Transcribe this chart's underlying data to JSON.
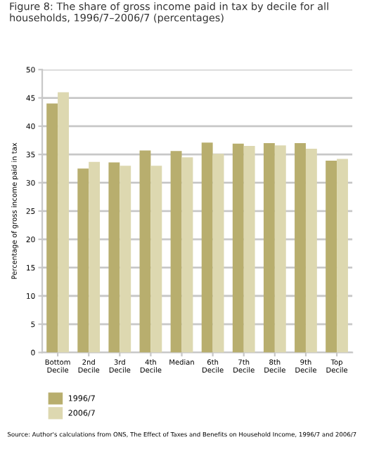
{
  "chart_data": {
    "type": "bar",
    "title": "Figure 8: The share of gross income paid in tax by decile for all households, 1996/7–2006/7 (percentages)",
    "ylabel": "Percentage of gross income paid in tax",
    "categories": [
      "Bottom\nDecile",
      "2nd\nDecile",
      "3rd\nDecile",
      "4th\nDecile",
      "Median",
      "6th\nDecile",
      "7th\nDecile",
      "8th\nDecile",
      "9th\nDecile",
      "Top\nDecile"
    ],
    "series": [
      {
        "name": "1996/7",
        "color": "#b8ae6e",
        "values": [
          44,
          32.5,
          33.6,
          35.7,
          35.6,
          37.1,
          36.9,
          37,
          37,
          33.9
        ]
      },
      {
        "name": "2006/7",
        "color": "#ddd8b0",
        "values": [
          46,
          33.7,
          33,
          33,
          34.5,
          35.1,
          36.5,
          36.6,
          36,
          34.2
        ]
      }
    ],
    "ylim": [
      0,
      50
    ],
    "yticks": [
      0,
      5,
      10,
      15,
      20,
      25,
      30,
      35,
      40,
      45,
      50
    ],
    "grid": "y",
    "legend": "bottom left",
    "annotations": [
      "Source: Author's calculations from ONS, The Effect of Taxes and Benefits on Household Income, 1996/7 and 2006/7"
    ]
  }
}
